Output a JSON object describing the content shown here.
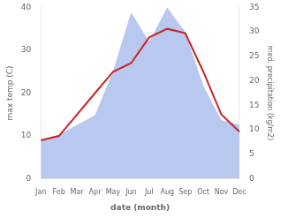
{
  "chart_data": {
    "type": "line",
    "xlabel": "date (month)",
    "ylabel": "max temp (C)",
    "y2label": "med. precipitation (kg/m2)",
    "categories": [
      "Jan",
      "Feb",
      "Mar",
      "Apr",
      "May",
      "Jun",
      "Jul",
      "Aug",
      "Sep",
      "Oct",
      "Nov",
      "Dec"
    ],
    "series": [
      {
        "type": "area",
        "axis": "y2",
        "color": "#b8c8ee",
        "values": [
          8,
          9,
          11,
          13,
          22,
          34,
          28,
          35,
          30,
          19,
          12,
          11
        ]
      },
      {
        "type": "line",
        "color": "#cc2222",
        "values": [
          9,
          10,
          15,
          20,
          25,
          27,
          33,
          35,
          34,
          25,
          15,
          11
        ]
      }
    ],
    "ylim": [
      0,
      40
    ],
    "yticks": [
      0,
      10,
      20,
      30,
      40
    ],
    "y2lim": [
      0,
      35
    ],
    "y2ticks": [
      0,
      5,
      10,
      15,
      20,
      25,
      30,
      35
    ],
    "grid": false
  }
}
